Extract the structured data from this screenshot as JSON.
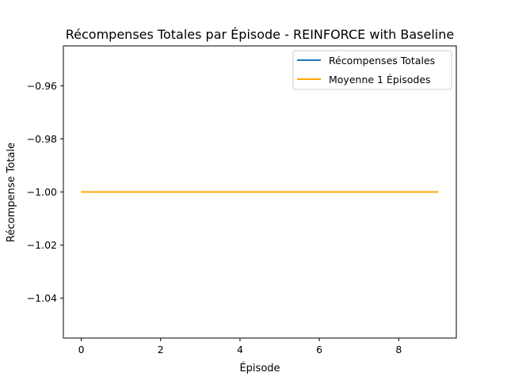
{
  "chart_data": {
    "type": "line",
    "title": "Récompenses Totales par Épisode - REINFORCE with Baseline",
    "xlabel": "Épisode",
    "ylabel": "Récompense Totale",
    "xlim": [
      -0.45,
      9.45
    ],
    "ylim": [
      -1.055,
      -0.945
    ],
    "xticks": [
      0,
      2,
      4,
      6,
      8
    ],
    "xtick_labels": [
      "0",
      "2",
      "4",
      "6",
      "8"
    ],
    "yticks": [
      -0.96,
      -0.98,
      -1.0,
      -1.02,
      -1.04
    ],
    "ytick_labels": [
      "−0.96",
      "−0.98",
      "−1.00",
      "−1.02",
      "−1.04"
    ],
    "grid": false,
    "legend": "top-right",
    "series": [
      {
        "name": "Récompenses Totales",
        "color": "#1f77b4",
        "x": [
          0,
          1,
          2,
          3,
          4,
          5,
          6,
          7,
          8,
          9
        ],
        "y": [
          -1,
          -1,
          -1,
          -1,
          -1,
          -1,
          -1,
          -1,
          -1,
          -1
        ]
      },
      {
        "name": "Moyenne 1 Épisodes",
        "color": "#ffa500",
        "x": [
          0,
          1,
          2,
          3,
          4,
          5,
          6,
          7,
          8,
          9
        ],
        "y": [
          -1,
          -1,
          -1,
          -1,
          -1,
          -1,
          -1,
          -1,
          -1,
          -1
        ]
      }
    ]
  }
}
